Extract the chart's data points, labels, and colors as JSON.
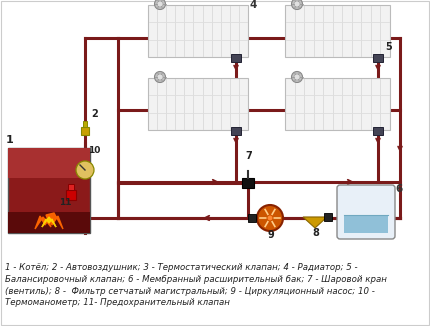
{
  "bg_color": "#ffffff",
  "pipe_supply": "#7a1a1a",
  "pipe_return": "#7a3535",
  "pipe_lw": 2.2,
  "rad_fill": "#f0f0f0",
  "rad_edge": "#bbbbbb",
  "boiler_fill": "#8B1A1A",
  "tank_fill": "#d8eaf5",
  "tank_edge": "#aaaaaa",
  "label_text": "1 - Котёл; 2 - Автовоздушник; 3 - Термостатический клапан; 4 - Радиатор; 5 -\nБалансировочный клапан; 6 - Мембранный расширительный бак; 7 - Шаровой кран\n(вентиль); 8 -  Фильтр сетчатый магистральный; 9 - Циркуляционный насос; 10 -\nТермоманометр; 11- Предохранительный клапан",
  "label_fontsize": 6.2,
  "figsize": [
    4.3,
    3.26
  ],
  "dpi": 100
}
